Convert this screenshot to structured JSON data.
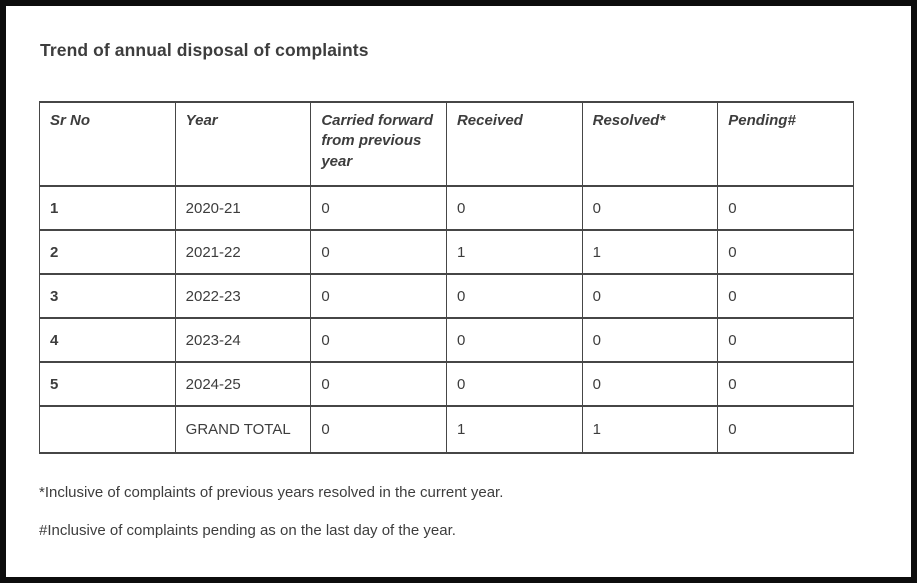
{
  "title": "Trend of annual disposal of complaints",
  "table": {
    "columns": [
      "Sr No",
      "Year",
      "Carried forward from previous year",
      "Received",
      "Resolved*",
      "Pending#"
    ],
    "rows": [
      [
        "1",
        "2020-21",
        "0",
        "0",
        "0",
        "0"
      ],
      [
        "2",
        "2021-22",
        "0",
        "1",
        "1",
        "0"
      ],
      [
        "3",
        "2022-23",
        "0",
        "0",
        "0",
        "0"
      ],
      [
        "4",
        "2023-24",
        "0",
        "0",
        "0",
        "0"
      ],
      [
        "5",
        "2024-25",
        "0",
        "0",
        "0",
        "0"
      ]
    ],
    "total_row": [
      "",
      "GRAND TOTAL",
      "0",
      "1",
      "1",
      "0"
    ]
  },
  "footnotes": [
    "*Inclusive of complaints of previous years resolved in the current year.",
    "#Inclusive of complaints pending as on the last day of the year."
  ],
  "colors": {
    "text": "#3d3d3d",
    "table_border": "#464646",
    "frame_border": "#0d0d0d",
    "background": "#ffffff"
  }
}
